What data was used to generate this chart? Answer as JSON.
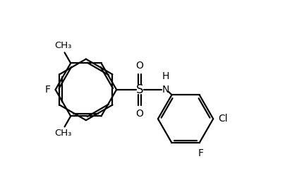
{
  "bg_color": "#ffffff",
  "line_color": "#000000",
  "line_width": 1.6,
  "font_size": 10,
  "fig_width": 4.21,
  "fig_height": 2.76,
  "dpi": 100,
  "xlim": [
    0,
    10
  ],
  "ylim": [
    0,
    6.56
  ]
}
